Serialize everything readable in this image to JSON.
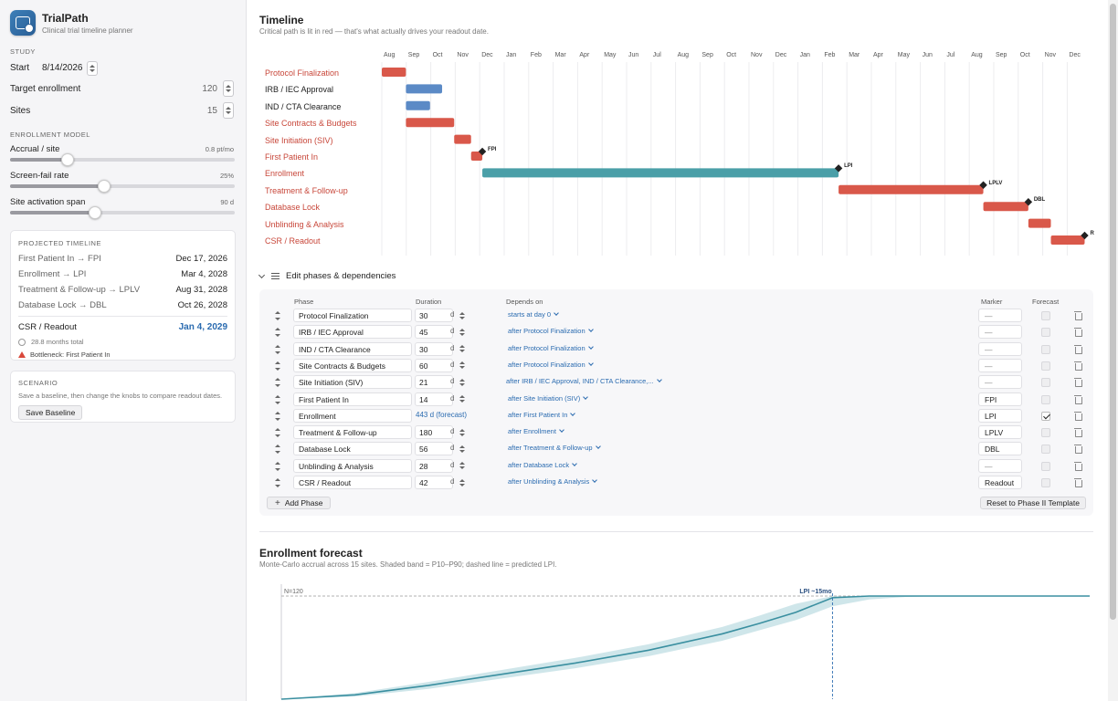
{
  "app": {
    "title": "TrialPath",
    "subtitle": "Clinical trial timeline planner"
  },
  "study": {
    "section": "STUDY",
    "start_label": "Start",
    "start_value": "8/14/2026",
    "enroll_label": "Target enrollment",
    "enroll_value": "120",
    "sites_label": "Sites",
    "sites_value": "15"
  },
  "model": {
    "section": "ENROLLMENT MODEL",
    "sliders": [
      {
        "label": "Accrual / site",
        "value": "0.8 pt/mo",
        "level": 0.255
      },
      {
        "label": "Screen-fail rate",
        "value": "25%",
        "level": 0.42
      },
      {
        "label": "Site activation span",
        "value": "90 d",
        "level": 0.38
      }
    ]
  },
  "projected": {
    "section": "PROJECTED TIMELINE",
    "rows": [
      {
        "label": "First Patient In → FPI",
        "value": "Dec 17, 2026"
      },
      {
        "label": "Enrollment → LPI",
        "value": "Mar 4, 2028"
      },
      {
        "label": "Treatment & Follow-up → LPLV",
        "value": "Aug 31, 2028"
      },
      {
        "label": "Database Lock → DBL",
        "value": "Oct 26, 2028"
      }
    ],
    "final_label": "CSR / Readout",
    "final_value": "Jan 4, 2029",
    "total": "28.8 months total",
    "bottleneck": "Bottleneck: First Patient In"
  },
  "scenario": {
    "section": "SCENARIO",
    "text": "Save a baseline, then change the knobs to compare readout dates.",
    "button": "Save Baseline"
  },
  "timeline": {
    "title": "Timeline",
    "subtitle": "Critical path is lit in red — that's what actually drives your readout date.",
    "months": [
      "Aug",
      "Sep",
      "Oct",
      "Nov",
      "Dec",
      "Jan",
      "Feb",
      "Mar",
      "Apr",
      "May",
      "Jun",
      "Jul",
      "Aug",
      "Sep",
      "Oct",
      "Nov",
      "Dec",
      "Jan",
      "Feb",
      "Mar",
      "Apr",
      "May",
      "Jun",
      "Jul",
      "Aug",
      "Sep",
      "Oct",
      "Nov",
      "Dec"
    ],
    "colors": {
      "critical": "#d9584a",
      "normal": "#5b8ac6",
      "enrollment": "#4a9fa8"
    },
    "phases": [
      {
        "name": "Protocol Finalization",
        "start": 0,
        "dur": 30,
        "kind": "critical"
      },
      {
        "name": "IRB / IEC Approval",
        "start": 30,
        "dur": 45,
        "kind": "normal"
      },
      {
        "name": "IND / CTA Clearance",
        "start": 30,
        "dur": 30,
        "kind": "normal"
      },
      {
        "name": "Site Contracts & Budgets",
        "start": 30,
        "dur": 60,
        "kind": "critical"
      },
      {
        "name": "Site Initiation (SIV)",
        "start": 90,
        "dur": 21,
        "kind": "critical"
      },
      {
        "name": "First Patient In",
        "start": 111,
        "dur": 14,
        "kind": "critical",
        "marker": "FPI"
      },
      {
        "name": "Enrollment",
        "start": 125,
        "dur": 443,
        "kind": "enrollment",
        "marker": "LPI"
      },
      {
        "name": "Treatment & Follow-up",
        "start": 568,
        "dur": 180,
        "kind": "critical",
        "marker": "LPLV"
      },
      {
        "name": "Database Lock",
        "start": 748,
        "dur": 56,
        "kind": "critical",
        "marker": "DBL"
      },
      {
        "name": "Unblinding & Analysis",
        "start": 804,
        "dur": 28,
        "kind": "critical"
      },
      {
        "name": "CSR / Readout",
        "start": 832,
        "dur": 42,
        "kind": "critical",
        "marker": "R"
      }
    ]
  },
  "editor": {
    "title": "Edit phases & dependencies",
    "headers": {
      "phase": "Phase",
      "duration": "Duration",
      "depends": "Depends on",
      "marker": "Marker",
      "forecast": "Forecast"
    },
    "unit": "d",
    "rows": [
      {
        "name": "Protocol Finalization",
        "dur": "30",
        "dep": "starts at day 0",
        "marker": "—",
        "forecast": false
      },
      {
        "name": "IRB / IEC Approval",
        "dur": "45",
        "dep": "after Protocol Finalization",
        "marker": "—",
        "forecast": false
      },
      {
        "name": "IND / CTA Clearance",
        "dur": "30",
        "dep": "after Protocol Finalization",
        "marker": "—",
        "forecast": false
      },
      {
        "name": "Site Contracts & Budgets",
        "dur": "60",
        "dep": "after Protocol Finalization",
        "marker": "—",
        "forecast": false
      },
      {
        "name": "Site Initiation (SIV)",
        "dur": "21",
        "dep": "after IRB / IEC Approval, IND / CTA Clearance,...",
        "marker": "—",
        "forecast": false
      },
      {
        "name": "First Patient In",
        "dur": "14",
        "dep": "after Site Initiation (SIV)",
        "marker": "FPI",
        "forecast": false
      },
      {
        "name": "Enrollment",
        "dur": "",
        "dur_forecast": "443 d (forecast)",
        "dep": "after First Patient In",
        "marker": "LPI",
        "forecast": true
      },
      {
        "name": "Treatment & Follow-up",
        "dur": "180",
        "dep": "after Enrollment",
        "marker": "LPLV",
        "forecast": false
      },
      {
        "name": "Database Lock",
        "dur": "56",
        "dep": "after Treatment & Follow-up",
        "marker": "DBL",
        "forecast": false
      },
      {
        "name": "Unblinding & Analysis",
        "dur": "28",
        "dep": "after Database Lock",
        "marker": "—",
        "forecast": false
      },
      {
        "name": "CSR / Readout",
        "dur": "42",
        "dep": "after Unblinding & Analysis",
        "marker": "Readout",
        "forecast": false
      }
    ],
    "add_button": "Add Phase",
    "reset_button": "Reset to Phase II Template"
  },
  "forecast": {
    "title": "Enrollment forecast",
    "subtitle": "Monte-Carlo accrual across 15 sites. Shaded band = P10–P90; dashed line = predicted LPI.",
    "target_label": "N=120",
    "lpi_label": "LPI ~15mo"
  },
  "chart_data": {
    "type": "area",
    "title": "Enrollment forecast",
    "xlabel": "",
    "ylabel": "",
    "ylim": [
      0,
      120
    ],
    "xlim": [
      0,
      22
    ],
    "target": 120,
    "lpi_month": 15,
    "median": [
      [
        0,
        0
      ],
      [
        2,
        5
      ],
      [
        4,
        16
      ],
      [
        6,
        29
      ],
      [
        8,
        42
      ],
      [
        10,
        57
      ],
      [
        12,
        76
      ],
      [
        13,
        88
      ],
      [
        14,
        101
      ],
      [
        15,
        118
      ],
      [
        16,
        120
      ],
      [
        22,
        120
      ]
    ],
    "p10": [
      [
        0,
        0
      ],
      [
        2,
        3
      ],
      [
        4,
        12
      ],
      [
        6,
        24
      ],
      [
        8,
        36
      ],
      [
        10,
        50
      ],
      [
        12,
        68
      ],
      [
        13,
        80
      ],
      [
        14,
        92
      ],
      [
        15,
        108
      ],
      [
        16,
        116
      ],
      [
        17,
        119
      ],
      [
        18,
        120
      ],
      [
        22,
        120
      ]
    ],
    "p90": [
      [
        0,
        0
      ],
      [
        2,
        7
      ],
      [
        4,
        20
      ],
      [
        6,
        34
      ],
      [
        8,
        48
      ],
      [
        10,
        64
      ],
      [
        12,
        84
      ],
      [
        13,
        97
      ],
      [
        14,
        111
      ],
      [
        15,
        120
      ],
      [
        22,
        120
      ]
    ],
    "series_colors": {
      "median": "#3a8fa0",
      "band": "#cfe6ea"
    }
  }
}
